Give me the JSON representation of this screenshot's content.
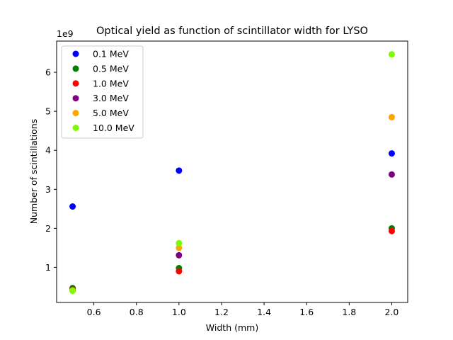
{
  "chart_data": {
    "type": "scatter",
    "title": "Optical yield as function of scintillator width for LYSO",
    "xlabel": "Width (mm)",
    "ylabel": "Number of scintillations",
    "y_offset_label": "1e9",
    "xlim": [
      0.425,
      2.075
    ],
    "ylim": [
      0.1,
      6.8
    ],
    "y_scale": 1000000000,
    "x_ticks": [
      "0.6",
      "0.8",
      "1.0",
      "1.2",
      "1.4",
      "1.6",
      "1.8",
      "2.0"
    ],
    "x_tick_values": [
      0.6,
      0.8,
      1.0,
      1.2,
      1.4,
      1.6,
      1.8,
      2.0
    ],
    "y_ticks": [
      "1",
      "2",
      "3",
      "4",
      "5",
      "6"
    ],
    "y_tick_values": [
      1,
      2,
      3,
      4,
      5,
      6
    ],
    "grid": false,
    "legend_position": "top-left",
    "x": [
      0.5,
      1.0,
      2.0
    ],
    "series": [
      {
        "name": "0.1 MeV",
        "color": "#0000ff",
        "values": [
          2.56,
          3.48,
          3.92
        ]
      },
      {
        "name": "0.5 MeV",
        "color": "#008000",
        "values": [
          0.47,
          0.98,
          2.0
        ]
      },
      {
        "name": "1.0 MeV",
        "color": "#ff0000",
        "values": [
          0.43,
          0.9,
          1.93
        ]
      },
      {
        "name": "3.0 MeV",
        "color": "#800080",
        "values": [
          0.42,
          1.31,
          3.38
        ]
      },
      {
        "name": "5.0 MeV",
        "color": "#ffa500",
        "values": [
          0.41,
          1.5,
          4.85
        ]
      },
      {
        "name": "10.0 MeV",
        "color": "#7cfc00",
        "values": [
          0.4,
          1.62,
          6.46
        ]
      }
    ]
  }
}
